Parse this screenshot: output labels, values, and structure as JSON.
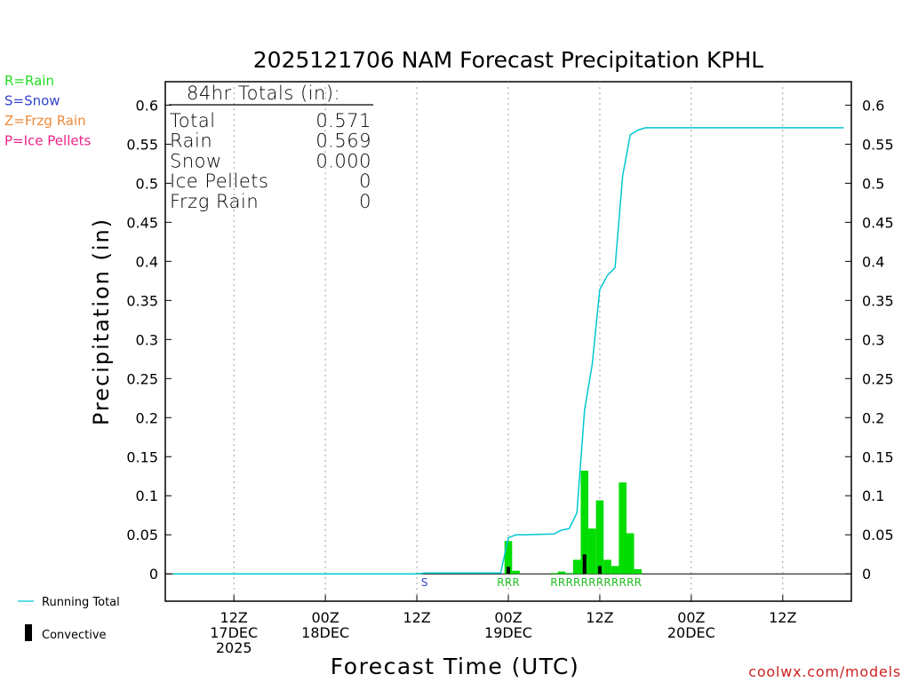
{
  "title": "2025121706 NAM Forecast Precipitation KPHL",
  "xlabel": "Forecast Time (UTC)",
  "ylabel": "Precipitation (in)",
  "watermark": "coolwx.com/models",
  "type_legend": [
    {
      "text": "R=Rain",
      "color": "#22dd22"
    },
    {
      "text": "S=Snow",
      "color": "#3344cc"
    },
    {
      "text": "Z=Frzg Rain",
      "color": "#f08a3a"
    },
    {
      "text": "P=Ice Pellets",
      "color": "#ee2288"
    }
  ],
  "totals": {
    "header": "84hr Totals (in):",
    "rows": [
      {
        "label": "Total",
        "value": "0.571"
      },
      {
        "label": "Rain",
        "value": "0.569"
      },
      {
        "label": "Snow",
        "value": "0.000"
      },
      {
        "label": "Ice Pellets",
        "value": "0"
      },
      {
        "label": "Frzg Rain",
        "value": "0"
      }
    ]
  },
  "bottom_legend": {
    "running_total": "Running Total",
    "convective": "Convective"
  },
  "colors": {
    "rain": "#00dd00",
    "convective": "#000000",
    "running_total": "#00c8d2",
    "snow_label": "#3344cc",
    "rain_label": "#22bb22",
    "grid": "#a0a0a0",
    "watermark": "#cc2222"
  },
  "chart_data": {
    "type": "bar",
    "x_unit": "forecast hour",
    "xlim": [
      -3,
      87
    ],
    "ylim": [
      -0.035,
      0.63
    ],
    "yticks": [
      0,
      0.05,
      0.1,
      0.15,
      0.2,
      0.25,
      0.3,
      0.35,
      0.4,
      0.45,
      0.5,
      0.55,
      0.6
    ],
    "xticks": [
      {
        "hour": 6,
        "lines": [
          "12Z",
          "17DEC",
          "2025"
        ]
      },
      {
        "hour": 18,
        "lines": [
          "00Z",
          "18DEC"
        ]
      },
      {
        "hour": 30,
        "lines": [
          "12Z"
        ]
      },
      {
        "hour": 42,
        "lines": [
          "00Z",
          "19DEC"
        ]
      },
      {
        "hour": 54,
        "lines": [
          "12Z"
        ]
      },
      {
        "hour": 66,
        "lines": [
          "00Z",
          "20DEC"
        ]
      },
      {
        "hour": 78,
        "lines": [
          "12Z"
        ]
      }
    ],
    "rain_bars": [
      {
        "hour": 42,
        "value": 0.042
      },
      {
        "hour": 43,
        "value": 0.004
      },
      {
        "hour": 48,
        "value": 0.001
      },
      {
        "hour": 49,
        "value": 0.003
      },
      {
        "hour": 50,
        "value": 0.001
      },
      {
        "hour": 51,
        "value": 0.018
      },
      {
        "hour": 52,
        "value": 0.132
      },
      {
        "hour": 53,
        "value": 0.058
      },
      {
        "hour": 54,
        "value": 0.094
      },
      {
        "hour": 55,
        "value": 0.018
      },
      {
        "hour": 56,
        "value": 0.01
      },
      {
        "hour": 57,
        "value": 0.117
      },
      {
        "hour": 58,
        "value": 0.052
      },
      {
        "hour": 59,
        "value": 0.006
      }
    ],
    "convective_bars": [
      {
        "hour": 42,
        "value": 0.009
      },
      {
        "hour": 52,
        "value": 0.025
      },
      {
        "hour": 54,
        "value": 0.01
      }
    ],
    "running_total": {
      "x": [
        -2,
        30,
        31,
        41,
        42,
        43,
        44,
        48,
        49,
        50,
        51,
        52,
        53,
        54,
        55,
        56,
        57,
        58,
        59,
        60,
        61,
        86
      ],
      "y": [
        0,
        0,
        0.001,
        0.001,
        0.046,
        0.05,
        0.05,
        0.051,
        0.056,
        0.058,
        0.078,
        0.21,
        0.268,
        0.364,
        0.382,
        0.392,
        0.51,
        0.562,
        0.568,
        0.571,
        0.571,
        0.571
      ]
    },
    "ptype_marks": [
      {
        "hour": 31,
        "type": "S"
      },
      {
        "hour": 41,
        "type": "R"
      },
      {
        "hour": 42,
        "type": "R"
      },
      {
        "hour": 43,
        "type": "R"
      },
      {
        "hour": 48,
        "type": "R"
      },
      {
        "hour": 49,
        "type": "R"
      },
      {
        "hour": 50,
        "type": "R"
      },
      {
        "hour": 51,
        "type": "R"
      },
      {
        "hour": 52,
        "type": "R"
      },
      {
        "hour": 53,
        "type": "R"
      },
      {
        "hour": 54,
        "type": "R"
      },
      {
        "hour": 55,
        "type": "R"
      },
      {
        "hour": 56,
        "type": "R"
      },
      {
        "hour": 57,
        "type": "R"
      },
      {
        "hour": 58,
        "type": "R"
      },
      {
        "hour": 59,
        "type": "R"
      }
    ]
  }
}
